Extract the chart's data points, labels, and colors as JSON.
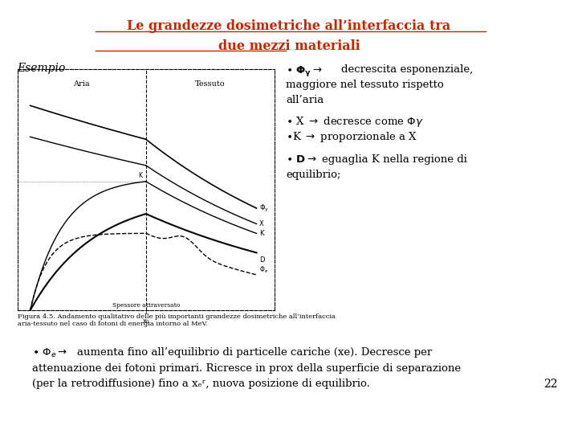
{
  "title_line1": "Le grandezze dosimetriche all’interfaccia tra",
  "title_line2": "due mezzi materiali",
  "title_color": "#cc2200",
  "bg_color": "#ffffff",
  "esempio_label": "Esempio",
  "footer_fig": "Figura 4.5. Andamento qualitativo delle più importanti grandezze dosimetriche all’interfaccia\naria-tessuto nel caso di fotoni di energia intorno al MeV.",
  "page_number": "22"
}
